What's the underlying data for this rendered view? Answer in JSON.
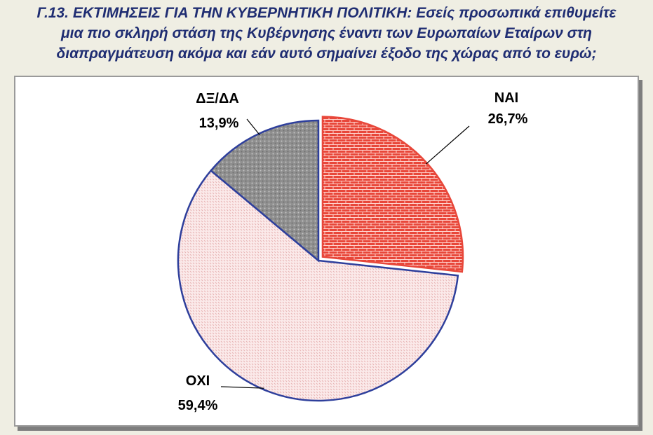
{
  "title": {
    "line1": "Γ.13. ΕΚΤΙΜΗΣΕΙΣ ΓΙΑ ΤΗΝ ΚΥΒΕΡΝΗΤΙΚΗ ΠΟΛΙΤΙΚΗ: Εσείς προσωπικά επιθυμείτε",
    "line2": "μια πιο σκληρή στάση της Κυβέρνησης έναντι των Ευρωπαίων Εταίρων στη",
    "line3": "διαπραγμάτευση ακόμα και εάν αυτό σημαίνει έξοδο της χώρας από το ευρώ;"
  },
  "chart_data": {
    "type": "pie",
    "title": "Γ.13. ΕΚΤΙΜΗΣΕΙΣ ΓΙΑ ΤΗΝ ΚΥΒΕΡΝΗΤΙΚΗ ΠΟΛΙΤΙΚΗ: Εσείς προσωπικά επιθυμείτε μια πιο σκληρή στάση της Κυβέρνησης έναντι των Ευρωπαίων Εταίρων στη διαπραγμάτευση ακόμα και εάν αυτό σημαίνει έξοδο της χώρας από το ευρώ;",
    "slices": [
      {
        "label": "ΝΑΙ",
        "value": 26.7,
        "value_label": "26,7%",
        "color": "#e8473a",
        "exploded": true
      },
      {
        "label": "ΟΧΙ",
        "value": 59.4,
        "value_label": "59,4%",
        "color": "#f6dcdc",
        "exploded": false
      },
      {
        "label": "ΔΞ/ΔΑ",
        "value": 13.9,
        "value_label": "13,9%",
        "color": "#9a9a9a",
        "exploded": false
      }
    ],
    "start_angle": "12 o'clock",
    "direction": "clockwise",
    "legend": "none",
    "labels": "outside with leader lines"
  }
}
